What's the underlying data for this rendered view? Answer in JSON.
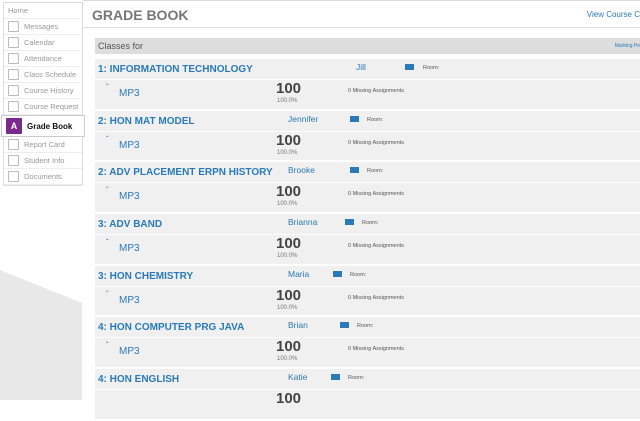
{
  "sidebar": {
    "items": [
      {
        "label": "Home",
        "icon": "home-icon"
      },
      {
        "label": "Messages",
        "icon": "messages-icon"
      },
      {
        "label": "Calendar",
        "icon": "calendar-icon"
      },
      {
        "label": "Attendance",
        "icon": "attendance-icon"
      },
      {
        "label": "Class Schedule",
        "icon": "class-schedule-icon"
      },
      {
        "label": "Course History",
        "icon": "course-history-icon"
      },
      {
        "label": "Course Request",
        "icon": "course-request-icon"
      },
      {
        "label": "Grade Book",
        "icon": "grade-book-icon",
        "active": true
      },
      {
        "label": "Report Card",
        "icon": "report-card-icon"
      },
      {
        "label": "Student Info",
        "icon": "student-info-icon"
      },
      {
        "label": "Documents",
        "icon": "documents-icon"
      }
    ]
  },
  "header": {
    "title": "GRADE BOOK",
    "view_course": "View Course C"
  },
  "classes_for": "Classes for",
  "marking_period": "Marking Pe",
  "accent": "#2a7ab8",
  "classes": [
    {
      "name": "1: INFORMATION TECHNOLOGY",
      "teacher": "Jill",
      "room": "Room:",
      "period": "MP3",
      "grade": "100",
      "percent": "100.0%",
      "missing": "0 Missing Assignments"
    },
    {
      "name": "2: HON MAT MODEL",
      "teacher": "Jennifer",
      "room": "Room:",
      "period": "MP3",
      "grade": "100",
      "percent": "100.0%",
      "missing": "0 Missing Assignments"
    },
    {
      "name": "2: ADV PLACEMENT ERPN HISTORY",
      "teacher": "Brooke",
      "room": "Room:",
      "period": "MP3",
      "grade": "100",
      "percent": "100.0%",
      "missing": "0 Missing Assignments"
    },
    {
      "name": "3: ADV BAND",
      "teacher": "Brianna",
      "room": "Room:",
      "period": "MP3",
      "grade": "100",
      "percent": "100.0%",
      "missing": "0 Missing Assignments"
    },
    {
      "name": "3: HON CHEMISTRY",
      "teacher": "Maria",
      "room": "Room:",
      "period": "MP3",
      "grade": "100",
      "percent": "100.0%",
      "missing": "0 Missing Assignments"
    },
    {
      "name": "4: HON COMPUTER PRG JAVA",
      "teacher": "Brian",
      "room": "Room:",
      "period": "MP3",
      "grade": "100",
      "percent": "100.0%",
      "missing": "0 Missing Assignments"
    },
    {
      "name": "4: HON ENGLISH",
      "teacher": "Katie",
      "room": "Room:",
      "period": "",
      "grade": "100",
      "percent": "",
      "missing": ""
    }
  ]
}
